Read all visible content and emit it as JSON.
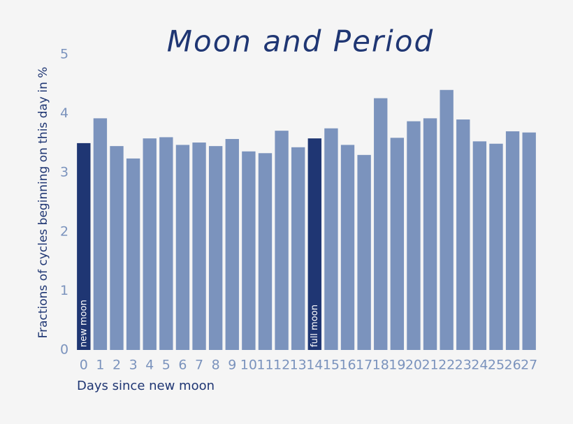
{
  "chart_data": {
    "type": "bar",
    "title": "Moon and Period",
    "x_label": "Days since new moon",
    "y_label": "Fractions of cycles beginning on this day in %",
    "categories": [
      "0",
      "1",
      "2",
      "3",
      "4",
      "5",
      "6",
      "7",
      "8",
      "9",
      "10",
      "11",
      "12",
      "13",
      "14",
      "15",
      "16",
      "17",
      "18",
      "19",
      "20",
      "21",
      "22",
      "23",
      "24",
      "25",
      "26",
      "27"
    ],
    "values": [
      3.5,
      3.92,
      3.45,
      3.24,
      3.58,
      3.6,
      3.47,
      3.51,
      3.45,
      3.57,
      3.36,
      3.33,
      3.71,
      3.43,
      3.58,
      3.75,
      3.47,
      3.3,
      4.26,
      3.59,
      3.87,
      3.92,
      4.4,
      3.9,
      3.53,
      3.49,
      3.7,
      3.68
    ],
    "color": "#7b93bd",
    "annotations": [
      {
        "category": "0",
        "text": "new moon",
        "color": "#1f3673"
      },
      {
        "category": "14",
        "text": "full moon",
        "color": "#1f3673"
      }
    ],
    "ylim": [
      0,
      5
    ],
    "yticks": [
      0,
      1,
      2,
      3,
      4,
      5
    ],
    "grid": false
  }
}
